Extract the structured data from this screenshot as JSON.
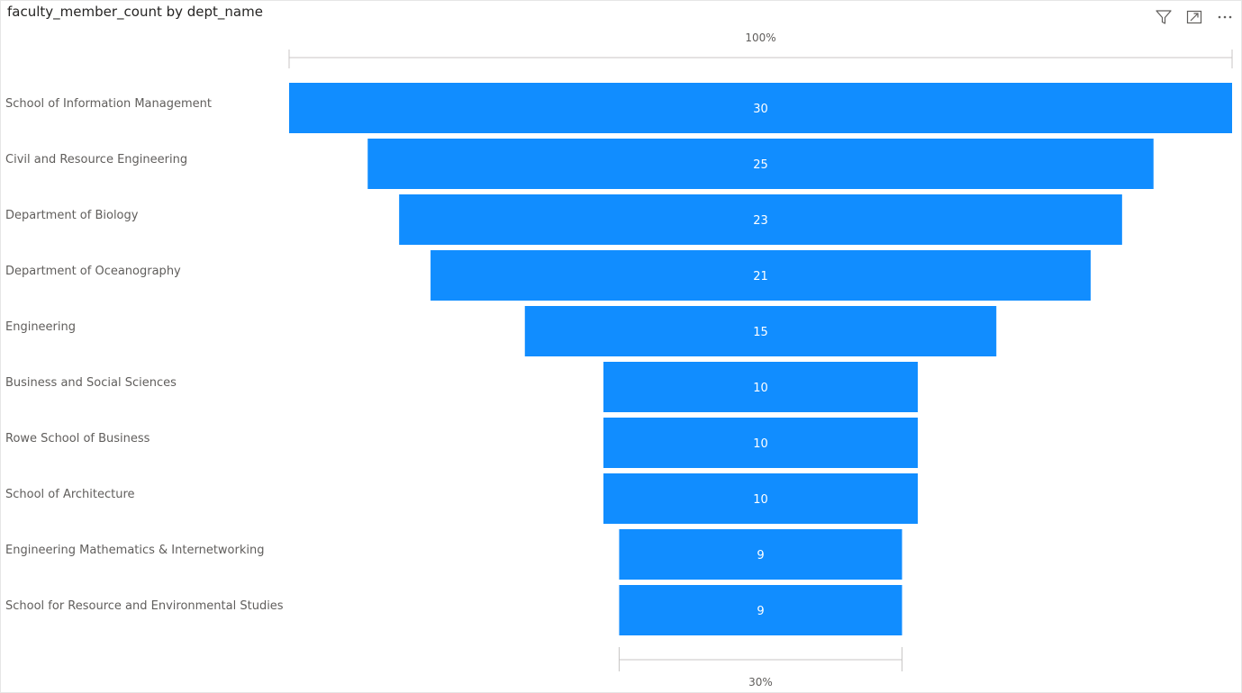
{
  "header": {
    "title": "faculty_member_count by dept_name",
    "icons": [
      "filter-icon",
      "focus-mode-icon",
      "more-options-icon"
    ]
  },
  "chart_data": {
    "type": "funnel",
    "title": "faculty_member_count by dept_name",
    "categories": [
      "School of Information Management",
      "Civil and Resource Engineering",
      "Department of Biology",
      "Department of Oceanography",
      "Engineering",
      "Business and Social Sciences",
      "Rowe School of Business",
      "School of Architecture",
      "Engineering Mathematics & Internetworking",
      "School for Resource and Environmental Studies"
    ],
    "values": [
      30,
      25,
      23,
      21,
      15,
      10,
      10,
      10,
      9,
      9
    ],
    "top_percent_label": "100%",
    "bottom_percent_label": "30%",
    "bar_color": "#118DFF",
    "label_color": "#605E5C"
  }
}
